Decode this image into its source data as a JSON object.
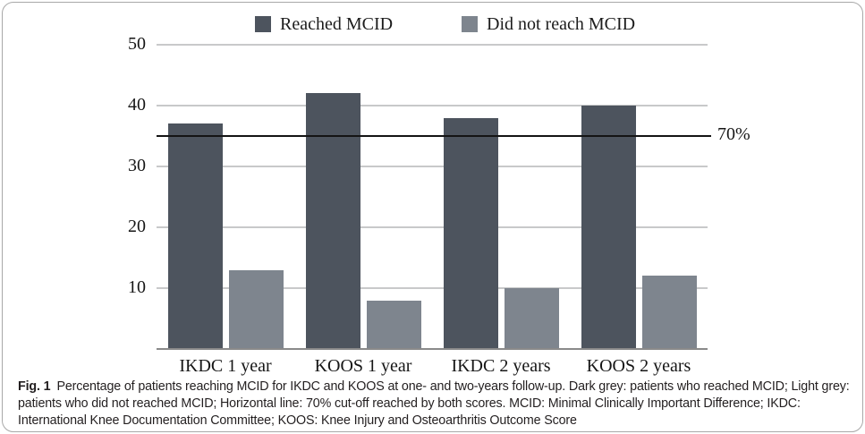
{
  "figure": {
    "caption_label": "Fig. 1",
    "caption_text": "Percentage of patients reaching MCID for IKDC and KOOS at one- and two-years follow-up. Dark grey: patients who reached MCID; Light grey: patients who did not reached MCID; Horizontal line: 70% cut-off reached by both scores. MCID: Minimal Clinically Important Difference; IKDC: International Knee Documentation Committee; KOOS: Knee Injury and Osteoarthritis Outcome Score"
  },
  "chart_data": {
    "type": "bar",
    "categories": [
      "IKDC 1 year",
      "KOOS 1 year",
      "IKDC 2 years",
      "KOOS 2 years"
    ],
    "series": [
      {
        "name": "Reached MCID",
        "color": "#4d545e",
        "values": [
          37,
          42,
          38,
          40
        ]
      },
      {
        "name": "Did not reach MCID",
        "color": "#7e858e",
        "values": [
          13,
          8,
          10,
          12
        ]
      }
    ],
    "title": "",
    "xlabel": "",
    "ylabel": "",
    "ylim": [
      0,
      50
    ],
    "yticks": [
      10,
      20,
      30,
      40,
      50
    ],
    "grid": true,
    "legend_position": "top",
    "cutoff_line": {
      "value": 35,
      "label": "70%"
    },
    "colors": {
      "gridline": "#c8c9ca",
      "axis_baseline": "#8a8a8a",
      "cutoff_line": "#141414",
      "border": "#a8a8a8"
    }
  }
}
